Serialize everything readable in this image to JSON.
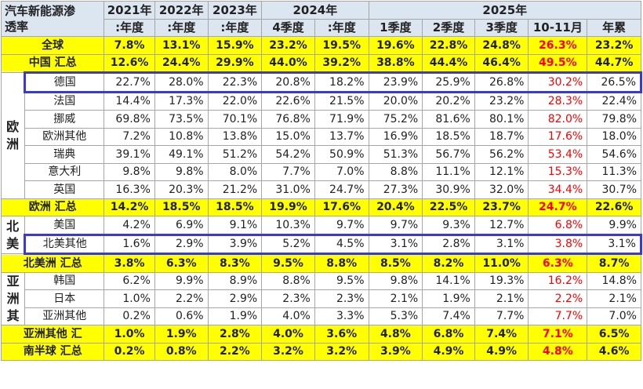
{
  "table": {
    "title_lines": [
      "汽车新能源渗",
      "透率"
    ],
    "columns": [
      {
        "year": "2021年",
        "periods": [
          ":年度"
        ]
      },
      {
        "year": "2022年",
        "periods": [
          ":年度"
        ]
      },
      {
        "year": "2023年",
        "periods": [
          ":年度"
        ]
      },
      {
        "year": "2024年",
        "periods": [
          "4季度",
          ":年度"
        ]
      },
      {
        "year": "2025年",
        "periods": [
          "1季度",
          "2季度",
          "3季度",
          "10-11月",
          "年累"
        ]
      }
    ],
    "sections": [
      {
        "label": "全球",
        "values": [
          "7.8%",
          "13.1%",
          "15.9%",
          "23.2%",
          "19.5%",
          "19.6%",
          "22.8%",
          "24.8%",
          "26.3%",
          "23.2%"
        ]
      },
      {
        "label": "中国 汇总",
        "values": [
          "12.6%",
          "24.4%",
          "29.9%",
          "44.0%",
          "39.2%",
          "38.8%",
          "44.4%",
          "46.4%",
          "49.5%",
          "44.7%"
        ]
      },
      {
        "group": "欧洲",
        "rows": [
          {
            "label": "德国",
            "highlight": true,
            "values": [
              "22.7%",
              "28.0%",
              "22.3%",
              "20.8%",
              "18.2%",
              "23.9%",
              "25.9%",
              "26.8%",
              "30.2%",
              "26.5%"
            ]
          },
          {
            "label": "法国",
            "values": [
              "14.4%",
              "17.3%",
              "22.0%",
              "22.6%",
              "21.5%",
              "20.0%",
              "20.2%",
              "23.2%",
              "28.3%",
              "22.4%"
            ]
          },
          {
            "label": "挪威",
            "values": [
              "69.8%",
              "73.5%",
              "70.1%",
              "76.8%",
              "71.9%",
              "75.2%",
              "81.6%",
              "80.1%",
              "82.0%",
              "79.8%"
            ]
          },
          {
            "label": "欧洲其他",
            "values": [
              "7.2%",
              "10.8%",
              "13.8%",
              "15.0%",
              "13.7%",
              "16.9%",
              "18.5%",
              "18.7%",
              "17.6%",
              "18.0%"
            ]
          },
          {
            "label": "瑞典",
            "values": [
              "39.1%",
              "49.1%",
              "51.2%",
              "54.2%",
              "50.9%",
              "51.3%",
              "56.7%",
              "56.2%",
              "53.4%",
              "54.6%"
            ]
          },
          {
            "label": "意大利",
            "values": [
              "9.8%",
              "9.8%",
              "8.0%",
              "7.7%",
              "7.0%",
              "8.8%",
              "11.1%",
              "12.1%",
              "15.3%",
              "11.3%"
            ]
          },
          {
            "label": "英国",
            "values": [
              "16.3%",
              "20.3%",
              "21.2%",
              "31.0%",
              "24.7%",
              "27.3%",
              "30.9%",
              "32.0%",
              "34.4%",
              "30.7%"
            ]
          }
        ]
      },
      {
        "label": "欧洲 汇总",
        "values": [
          "14.2%",
          "18.5%",
          "18.5%",
          "19.9%",
          "17.6%",
          "20.4%",
          "22.5%",
          "23.7%",
          "24.7%",
          "22.6%"
        ]
      },
      {
        "group": "北美",
        "rows": [
          {
            "label": "美国",
            "values": [
              "4.2%",
              "6.9%",
              "9.1%",
              "10.3%",
              "9.7%",
              "9.7%",
              "9.3%",
              "12.7%",
              "6.8%",
              "9.9%"
            ]
          },
          {
            "label": "北美其他",
            "highlight": true,
            "values": [
              "1.6%",
              "2.9%",
              "3.9%",
              "5.2%",
              "4.5%",
              "3.1%",
              "2.8%",
              "3.1%",
              "3.8%",
              "3.1%"
            ]
          }
        ]
      },
      {
        "label": "北美洲 汇总",
        "values": [
          "3.8%",
          "6.3%",
          "8.3%",
          "9.5%",
          "8.8%",
          "8.5%",
          "8.2%",
          "11.0%",
          "6.3%",
          "8.7%"
        ]
      },
      {
        "group": "亚洲其",
        "rows": [
          {
            "label": "韩国",
            "values": [
              "6.2%",
              "9.9%",
              "8.9%",
              "8.8%",
              "9.5%",
              "9.8%",
              "14.1%",
              "19.3%",
              "16.2%",
              "14.8%"
            ]
          },
          {
            "label": "日本",
            "values": [
              "1.0%",
              "2.2%",
              "2.9%",
              "2.3%",
              "2.3%",
              "2.1%",
              "1.9%",
              "2.1%",
              "2.2%",
              "2.1%"
            ]
          },
          {
            "label": "亚洲其他",
            "values": [
              "0.2%",
              "0.6%",
              "1.9%",
              "4.0%",
              "3.3%",
              "5.3%",
              "7.4%",
              "7.7%",
              "7.7%",
              "7.0%"
            ]
          }
        ]
      },
      {
        "label": "亚洲其他 汇",
        "values": [
          "1.0%",
          "1.9%",
          "2.8%",
          "4.0%",
          "3.6%",
          "4.8%",
          "6.8%",
          "7.4%",
          "7.1%",
          "6.5%"
        ]
      },
      {
        "label": "南半球 汇总",
        "values": [
          "0.2%",
          "0.8%",
          "2.2%",
          "3.2%",
          "3.2%",
          "3.9%",
          "4.9%",
          "4.9%",
          "4.8%",
          "4.6%"
        ]
      }
    ]
  }
}
